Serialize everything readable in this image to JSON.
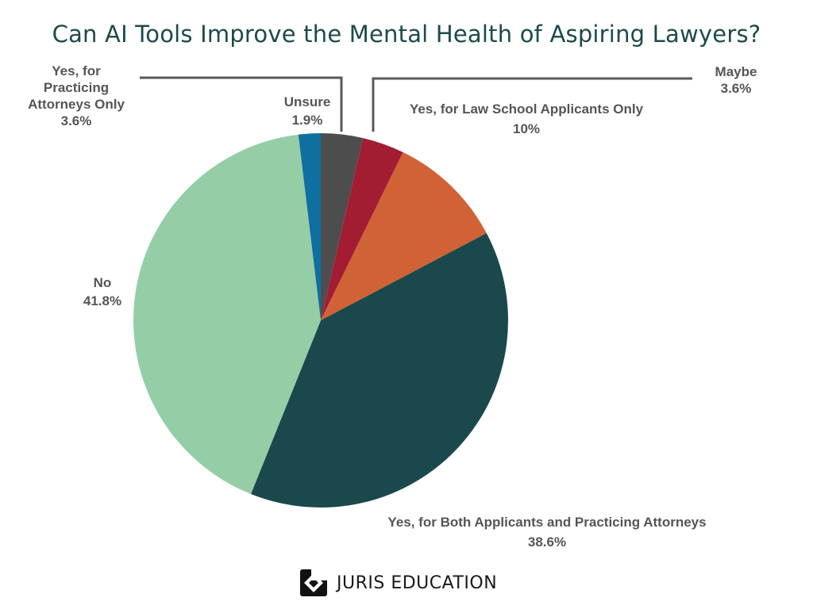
{
  "title": "Can AI Tools Improve the Mental Health of Aspiring Lawyers?",
  "brand": "JURIS EDUCATION",
  "chart_data": {
    "type": "pie",
    "title": "Can AI Tools Improve the Mental Health of Aspiring Lawyers?",
    "slices": [
      {
        "label": "Yes, for Practicing Attorneys Only",
        "value": 3.6,
        "display": "3.6%",
        "color": "#4d4d4d"
      },
      {
        "label": "Maybe",
        "value": 3.6,
        "display": "3.6%",
        "color": "#a31d32"
      },
      {
        "label": "Yes, for Law School Applicants Only",
        "value": 10,
        "display": "10%",
        "color": "#d06235"
      },
      {
        "label": "Yes, for Both Applicants and Practicing Attorneys",
        "value": 38.6,
        "display": "38.6%",
        "color": "#1b484c"
      },
      {
        "label": "No",
        "value": 41.8,
        "display": "41.8%",
        "color": "#95cea6"
      },
      {
        "label": "Unsure",
        "value": 1.9,
        "display": "1.9%",
        "color": "#0f6fa0"
      }
    ],
    "label_texts": {
      "practicing_line1": "Yes, for",
      "practicing_line2": "Practicing",
      "practicing_line3": "Attorneys Only",
      "practicing_pct": "3.6%",
      "unsure_line1": "Unsure",
      "unsure_pct": "1.9%",
      "law_school_line1": "Yes, for Law School Applicants Only",
      "law_school_pct": "10%",
      "maybe_line1": "Maybe",
      "maybe_pct": "3.6%",
      "no_line1": "No",
      "no_pct": "41.8%",
      "both_line1": "Yes, for Both Applicants and Practicing Attorneys",
      "both_pct": "38.6%"
    }
  }
}
